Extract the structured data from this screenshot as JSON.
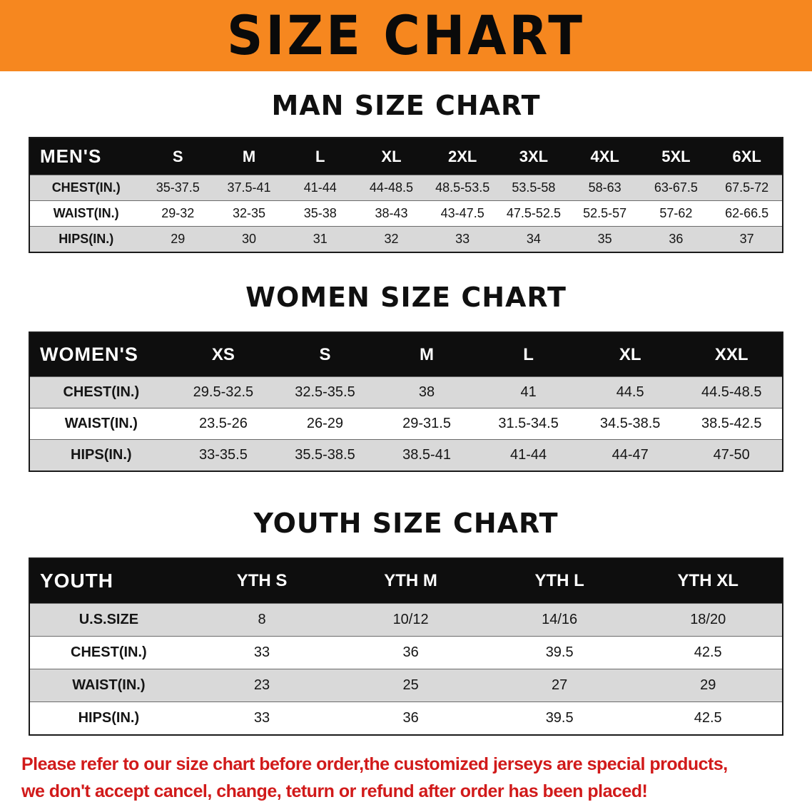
{
  "banner": {
    "title": "SIZE CHART",
    "bg_color": "#f6871f"
  },
  "sections": [
    {
      "heading": "MAN SIZE CHART",
      "corner_label": "MEN'S",
      "columns": [
        "S",
        "M",
        "L",
        "XL",
        "2XL",
        "3XL",
        "4XL",
        "5XL",
        "6XL"
      ],
      "rows": [
        {
          "label": "CHEST(IN.)",
          "values": [
            "35-37.5",
            "37.5-41",
            "41-44",
            "44-48.5",
            "48.5-53.5",
            "53.5-58",
            "58-63",
            "63-67.5",
            "67.5-72"
          ]
        },
        {
          "label": "WAIST(IN.)",
          "values": [
            "29-32",
            "32-35",
            "35-38",
            "38-43",
            "43-47.5",
            "47.5-52.5",
            "52.5-57",
            "57-62",
            "62-66.5"
          ]
        },
        {
          "label": "HIPS(IN.)",
          "values": [
            "29",
            "30",
            "31",
            "32",
            "33",
            "34",
            "35",
            "36",
            "37"
          ]
        }
      ]
    },
    {
      "heading": "WOMEN SIZE CHART",
      "corner_label": "WOMEN'S",
      "columns": [
        "XS",
        "S",
        "M",
        "L",
        "XL",
        "XXL"
      ],
      "rows": [
        {
          "label": "CHEST(IN.)",
          "values": [
            "29.5-32.5",
            "32.5-35.5",
            "38",
            "41",
            "44.5",
            "44.5-48.5"
          ]
        },
        {
          "label": "WAIST(IN.)",
          "values": [
            "23.5-26",
            "26-29",
            "29-31.5",
            "31.5-34.5",
            "34.5-38.5",
            "38.5-42.5"
          ]
        },
        {
          "label": "HIPS(IN.)",
          "values": [
            "33-35.5",
            "35.5-38.5",
            "38.5-41",
            "41-44",
            "44-47",
            "47-50"
          ]
        }
      ]
    },
    {
      "heading": "YOUTH SIZE CHART",
      "corner_label": "YOUTH",
      "columns": [
        "YTH S",
        "YTH M",
        "YTH L",
        "YTH XL"
      ],
      "rows": [
        {
          "label": "U.S.SIZE",
          "values": [
            "8",
            "10/12",
            "14/16",
            "18/20"
          ]
        },
        {
          "label": "CHEST(IN.)",
          "values": [
            "33",
            "36",
            "39.5",
            "42.5"
          ]
        },
        {
          "label": "WAIST(IN.)",
          "values": [
            "23",
            "25",
            "27",
            "29"
          ]
        },
        {
          "label": "HIPS(IN.)",
          "values": [
            "33",
            "36",
            "39.5",
            "42.5"
          ]
        }
      ]
    }
  ],
  "footer_note": {
    "lines": [
      "Please refer to our size chart before order,the customized jerseys are special products,",
      "we don't accept cancel, change, teturn or refund after order has been placed!"
    ],
    "color": "#d11a1a"
  }
}
